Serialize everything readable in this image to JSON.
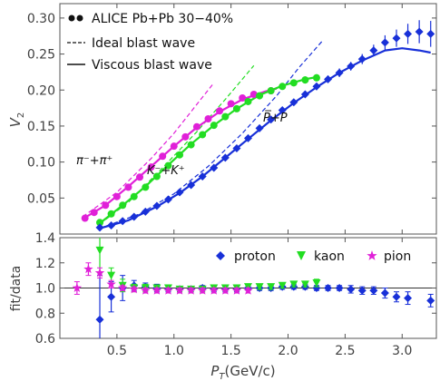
{
  "figure": {
    "x_axis_title": "P_T(GeV/c)",
    "x_axis_title_main": "P",
    "x_axis_title_sub": "T",
    "x_axis_title_unit": "(GeV/c)"
  },
  "chart_data": [
    {
      "type": "scatter",
      "panel": "top",
      "ylabel": "V_2",
      "ylabel_main": "V",
      "ylabel_sub": "2",
      "xlim": [
        0.0,
        3.3
      ],
      "ylim": [
        0.0,
        0.32
      ],
      "yticks": [
        "0.05",
        "0.10",
        "0.15",
        "0.20",
        "0.25",
        "0.30"
      ],
      "ytick_values": [
        0.05,
        0.1,
        0.15,
        0.2,
        0.25,
        0.3
      ],
      "legend": {
        "placement": "top-left",
        "entries": [
          "ALICE Pb+Pb 30−40%",
          "Ideal blast wave",
          "Viscous blast wave"
        ]
      },
      "annotations": {
        "pion": "π⁻+π⁺",
        "kaon": "K⁻+K⁺",
        "proton": "P̅+P"
      },
      "series": [
        {
          "color": "#e020d8",
          "marker": "circle",
          "points": [
            [
              0.22,
              0.022,
              0.002
            ],
            [
              0.3,
              0.03,
              0.002
            ],
            [
              0.4,
              0.04,
              0.002
            ],
            [
              0.5,
              0.052,
              0.002
            ],
            [
              0.6,
              0.065,
              0.002
            ],
            [
              0.7,
              0.079,
              0.002
            ],
            [
              0.8,
              0.093,
              0.002
            ],
            [
              0.9,
              0.108,
              0.002
            ],
            [
              1.0,
              0.122,
              0.002
            ],
            [
              1.1,
              0.135,
              0.002
            ],
            [
              1.2,
              0.149,
              0.002
            ],
            [
              1.3,
              0.16,
              0.002
            ],
            [
              1.4,
              0.171,
              0.003
            ],
            [
              1.5,
              0.181,
              0.003
            ],
            [
              1.6,
              0.189,
              0.003
            ],
            [
              1.7,
              0.194,
              0.004
            ],
            [
              1.85,
              0.199,
              0.004
            ]
          ]
        },
        {
          "color": "#22dd22",
          "marker": "circle",
          "points": [
            [
              0.35,
              0.016,
              0.004
            ],
            [
              0.45,
              0.028,
              0.002
            ],
            [
              0.55,
              0.04,
              0.002
            ],
            [
              0.65,
              0.052,
              0.002
            ],
            [
              0.75,
              0.065,
              0.002
            ],
            [
              0.85,
              0.08,
              0.002
            ],
            [
              0.95,
              0.095,
              0.002
            ],
            [
              1.05,
              0.11,
              0.002
            ],
            [
              1.15,
              0.124,
              0.002
            ],
            [
              1.25,
              0.138,
              0.002
            ],
            [
              1.35,
              0.151,
              0.003
            ],
            [
              1.45,
              0.163,
              0.003
            ],
            [
              1.55,
              0.174,
              0.003
            ],
            [
              1.65,
              0.184,
              0.003
            ],
            [
              1.75,
              0.192,
              0.004
            ],
            [
              1.85,
              0.199,
              0.004
            ],
            [
              1.95,
              0.205,
              0.004
            ],
            [
              2.05,
              0.21,
              0.004
            ],
            [
              2.15,
              0.214,
              0.005
            ],
            [
              2.25,
              0.217,
              0.005
            ]
          ]
        },
        {
          "color": "#1830d8",
          "marker": "diamond",
          "points": [
            [
              0.35,
              0.009,
              0.003
            ],
            [
              0.45,
              0.012,
              0.002
            ],
            [
              0.55,
              0.018,
              0.002
            ],
            [
              0.65,
              0.024,
              0.002
            ],
            [
              0.75,
              0.031,
              0.002
            ],
            [
              0.85,
              0.039,
              0.002
            ],
            [
              0.95,
              0.048,
              0.002
            ],
            [
              1.05,
              0.058,
              0.002
            ],
            [
              1.15,
              0.068,
              0.002
            ],
            [
              1.25,
              0.08,
              0.002
            ],
            [
              1.35,
              0.092,
              0.002
            ],
            [
              1.45,
              0.106,
              0.003
            ],
            [
              1.55,
              0.119,
              0.003
            ],
            [
              1.65,
              0.133,
              0.003
            ],
            [
              1.75,
              0.147,
              0.003
            ],
            [
              1.85,
              0.159,
              0.003
            ],
            [
              1.95,
              0.172,
              0.004
            ],
            [
              2.05,
              0.183,
              0.004
            ],
            [
              2.15,
              0.194,
              0.004
            ],
            [
              2.25,
              0.205,
              0.005
            ],
            [
              2.35,
              0.215,
              0.005
            ],
            [
              2.45,
              0.224,
              0.006
            ],
            [
              2.55,
              0.233,
              0.006
            ],
            [
              2.65,
              0.243,
              0.007
            ],
            [
              2.75,
              0.255,
              0.008
            ],
            [
              2.85,
              0.266,
              0.01
            ],
            [
              2.95,
              0.272,
              0.012
            ],
            [
              3.05,
              0.278,
              0.014
            ],
            [
              3.15,
              0.281,
              0.016
            ],
            [
              3.25,
              0.278,
              0.018
            ]
          ]
        }
      ],
      "ideal_curves": [
        {
          "color": "#e020d8",
          "points": [
            [
              0.2,
              0.024
            ],
            [
              0.5,
              0.058
            ],
            [
              0.8,
              0.105
            ],
            [
              1.0,
              0.14
            ],
            [
              1.2,
              0.18
            ],
            [
              1.35,
              0.21
            ]
          ]
        },
        {
          "color": "#22dd22",
          "points": [
            [
              0.35,
              0.014
            ],
            [
              0.6,
              0.044
            ],
            [
              0.9,
              0.092
            ],
            [
              1.2,
              0.142
            ],
            [
              1.45,
              0.187
            ],
            [
              1.7,
              0.234
            ]
          ]
        },
        {
          "color": "#1830d8",
          "points": [
            [
              0.35,
              0.008
            ],
            [
              0.7,
              0.028
            ],
            [
              1.0,
              0.056
            ],
            [
              1.3,
              0.094
            ],
            [
              1.6,
              0.14
            ],
            [
              1.9,
              0.192
            ],
            [
              2.1,
              0.232
            ],
            [
              2.3,
              0.268
            ]
          ]
        }
      ],
      "viscous_curves": [
        {
          "color": "#e020d8",
          "points": [
            [
              0.2,
              0.021
            ],
            [
              0.4,
              0.04
            ],
            [
              0.6,
              0.066
            ],
            [
              0.8,
              0.094
            ],
            [
              1.0,
              0.122
            ],
            [
              1.2,
              0.148
            ],
            [
              1.4,
              0.17
            ],
            [
              1.6,
              0.187
            ],
            [
              1.8,
              0.198
            ],
            [
              1.9,
              0.202
            ]
          ]
        },
        {
          "color": "#22dd22",
          "points": [
            [
              0.35,
              0.015
            ],
            [
              0.55,
              0.04
            ],
            [
              0.75,
              0.066
            ],
            [
              0.95,
              0.096
            ],
            [
              1.15,
              0.125
            ],
            [
              1.35,
              0.151
            ],
            [
              1.55,
              0.174
            ],
            [
              1.75,
              0.193
            ],
            [
              1.95,
              0.206
            ],
            [
              2.15,
              0.215
            ],
            [
              2.25,
              0.218
            ]
          ]
        },
        {
          "color": "#1830d8",
          "points": [
            [
              0.35,
              0.008
            ],
            [
              0.6,
              0.019
            ],
            [
              0.85,
              0.038
            ],
            [
              1.05,
              0.057
            ],
            [
              1.25,
              0.08
            ],
            [
              1.45,
              0.106
            ],
            [
              1.65,
              0.132
            ],
            [
              1.85,
              0.158
            ],
            [
              2.05,
              0.182
            ],
            [
              2.25,
              0.204
            ],
            [
              2.45,
              0.224
            ],
            [
              2.65,
              0.241
            ],
            [
              2.85,
              0.255
            ],
            [
              3.0,
              0.258
            ],
            [
              3.15,
              0.255
            ],
            [
              3.25,
              0.252
            ]
          ]
        }
      ]
    },
    {
      "type": "scatter",
      "panel": "bottom",
      "ylabel": "fit/data",
      "xlabel": "P_T(GeV/c)",
      "xlim": [
        0.0,
        3.3
      ],
      "ylim": [
        0.6,
        1.4
      ],
      "xticks": [
        "0.5",
        "1.0",
        "1.5",
        "2.0",
        "2.5",
        "3.0"
      ],
      "xtick_values": [
        0.5,
        1.0,
        1.5,
        2.0,
        2.5,
        3.0
      ],
      "yticks": [
        "0.6",
        "0.8",
        "1.0",
        "1.2",
        "1.4"
      ],
      "ytick_values": [
        0.6,
        0.8,
        1.0,
        1.2,
        1.4
      ],
      "reference_line": 1.0,
      "legend": {
        "placement": "top-right",
        "entries": [
          "proton",
          "kaon",
          "pion"
        ]
      },
      "series": [
        {
          "name": "proton",
          "color": "#1830d8",
          "marker": "diamond",
          "points": [
            [
              0.35,
              0.75,
              0.35
            ],
            [
              0.45,
              0.93,
              0.12
            ],
            [
              0.55,
              1.0,
              0.1
            ],
            [
              0.65,
              1.02,
              0.04
            ],
            [
              0.75,
              1.01,
              0.03
            ],
            [
              0.85,
              1.0,
              0.03
            ],
            [
              0.95,
              0.99,
              0.02
            ],
            [
              1.05,
              0.99,
              0.02
            ],
            [
              1.15,
              0.99,
              0.02
            ],
            [
              1.25,
              1.0,
              0.02
            ],
            [
              1.35,
              0.99,
              0.02
            ],
            [
              1.45,
              0.99,
              0.02
            ],
            [
              1.55,
              0.99,
              0.02
            ],
            [
              1.65,
              1.0,
              0.02
            ],
            [
              1.75,
              1.0,
              0.02
            ],
            [
              1.85,
              1.0,
              0.02
            ],
            [
              1.95,
              1.01,
              0.02
            ],
            [
              2.05,
              1.01,
              0.02
            ],
            [
              2.15,
              1.01,
              0.02
            ],
            [
              2.25,
              1.0,
              0.02
            ],
            [
              2.35,
              1.0,
              0.02
            ],
            [
              2.45,
              1.0,
              0.02
            ],
            [
              2.55,
              0.99,
              0.03
            ],
            [
              2.65,
              0.98,
              0.03
            ],
            [
              2.75,
              0.98,
              0.03
            ],
            [
              2.85,
              0.96,
              0.04
            ],
            [
              2.95,
              0.93,
              0.04
            ],
            [
              3.05,
              0.92,
              0.05
            ],
            [
              3.25,
              0.9,
              0.05
            ]
          ]
        },
        {
          "name": "kaon",
          "color": "#22dd22",
          "marker": "triangle-down",
          "points": [
            [
              0.35,
              1.3,
              0.18
            ],
            [
              0.45,
              1.1,
              0.06
            ],
            [
              0.55,
              1.02,
              0.05
            ],
            [
              0.65,
              1.0,
              0.03
            ],
            [
              0.75,
              1.0,
              0.03
            ],
            [
              0.85,
              1.0,
              0.02
            ],
            [
              0.95,
              1.0,
              0.02
            ],
            [
              1.05,
              0.99,
              0.02
            ],
            [
              1.15,
              0.99,
              0.02
            ],
            [
              1.25,
              0.99,
              0.02
            ],
            [
              1.35,
              1.0,
              0.02
            ],
            [
              1.45,
              1.0,
              0.02
            ],
            [
              1.55,
              1.0,
              0.02
            ],
            [
              1.65,
              1.01,
              0.02
            ],
            [
              1.75,
              1.01,
              0.02
            ],
            [
              1.85,
              1.01,
              0.02
            ],
            [
              1.95,
              1.02,
              0.02
            ],
            [
              2.05,
              1.03,
              0.02
            ],
            [
              2.15,
              1.03,
              0.02
            ],
            [
              2.25,
              1.04,
              0.03
            ]
          ]
        },
        {
          "name": "pion",
          "color": "#e020d8",
          "marker": "star",
          "points": [
            [
              0.15,
              1.0,
              0.05
            ],
            [
              0.25,
              1.15,
              0.05
            ],
            [
              0.35,
              1.12,
              0.04
            ],
            [
              0.45,
              1.03,
              0.03
            ],
            [
              0.55,
              1.0,
              0.02
            ],
            [
              0.65,
              0.99,
              0.02
            ],
            [
              0.75,
              0.98,
              0.02
            ],
            [
              0.85,
              0.98,
              0.02
            ],
            [
              0.95,
              0.98,
              0.02
            ],
            [
              1.05,
              0.98,
              0.02
            ],
            [
              1.15,
              0.98,
              0.02
            ],
            [
              1.25,
              0.98,
              0.02
            ],
            [
              1.35,
              0.98,
              0.02
            ],
            [
              1.45,
              0.98,
              0.02
            ],
            [
              1.55,
              0.98,
              0.02
            ],
            [
              1.65,
              0.98,
              0.02
            ]
          ]
        }
      ]
    }
  ]
}
